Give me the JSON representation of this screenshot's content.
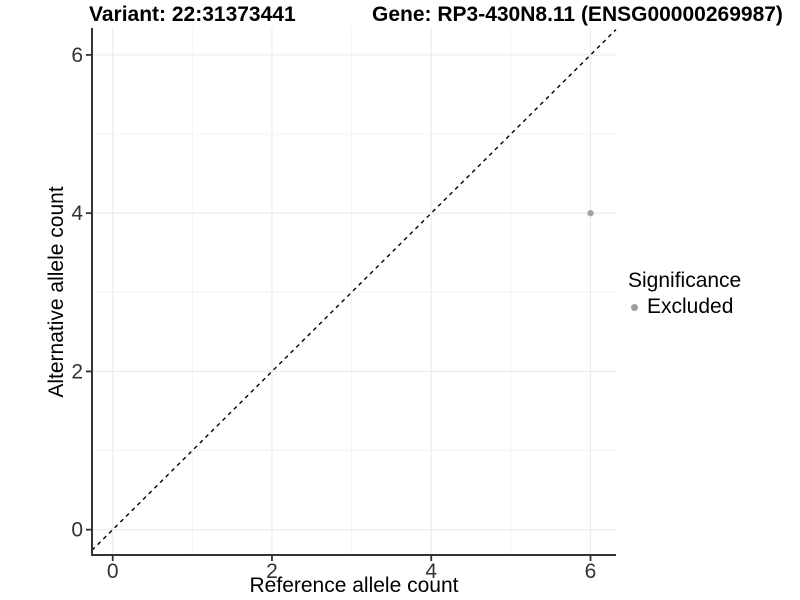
{
  "chart_data": {
    "type": "scatter",
    "title_left": "Variant: 22:31373441",
    "title_right": "Gene: RP3-430N8.11 (ENSG00000269987)",
    "xlabel": "Reference allele count",
    "ylabel": "Alternative allele count",
    "xlim": [
      -0.26,
      6.32
    ],
    "ylim": [
      -0.32,
      6.34
    ],
    "x_ticks": [
      0,
      2,
      4,
      6
    ],
    "y_ticks": [
      0,
      2,
      4,
      6
    ],
    "minor_ticks": [
      1,
      3,
      5
    ],
    "grid": true,
    "series": [
      {
        "name": "Excluded",
        "color": "#a3a3a3",
        "point_radius": 3.2,
        "points": [
          {
            "x": 6,
            "y": 4
          }
        ]
      }
    ],
    "identity_line": {
      "style": "dashed",
      "color": "#000000",
      "slope": 1,
      "intercept": 0
    },
    "legend": {
      "position": "right",
      "title": "Significance",
      "items": [
        {
          "label": "Excluded",
          "color": "#9e9e9e"
        }
      ]
    },
    "style": {
      "background": "#ffffff",
      "grid_major": "#ebebeb",
      "grid_minor": "#f4f4f4",
      "axis": "#333333",
      "tick_text": "#333333"
    }
  }
}
